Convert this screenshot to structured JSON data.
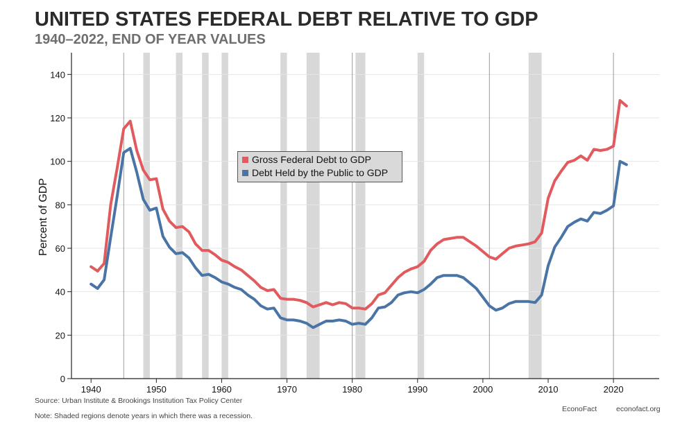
{
  "header": {
    "title": "UNITED STATES FEDERAL DEBT RELATIVE TO GDP",
    "subtitle": "1940–2022, END OF YEAR VALUES"
  },
  "footer": {
    "source": "Source: Urban Institute & Brookings Institution Tax Policy Center",
    "note": "Note: Shaded regions denote years in which there was a recession.",
    "brand": "EconoFact",
    "site": "econofact.org"
  },
  "colors": {
    "gross": "#e05a5e",
    "public": "#4a74a6",
    "recession": "#d8d8d8",
    "decade_line": "#9a9a9a",
    "grid": "#e6e6e6"
  },
  "chart_data": {
    "type": "line",
    "title": "UNITED STATES FEDERAL DEBT RELATIVE TO GDP",
    "subtitle": "1940–2022, END OF YEAR VALUES",
    "xlabel": "",
    "ylabel": "Percent of GDP",
    "xlim": [
      1937,
      2027
    ],
    "ylim": [
      0,
      150
    ],
    "xticks": [
      1940,
      1950,
      1960,
      1970,
      1980,
      1990,
      2000,
      2010,
      2020
    ],
    "yticks": [
      0,
      20,
      40,
      60,
      80,
      100,
      120,
      140
    ],
    "grid": true,
    "legend_position": "center-left",
    "decade_lines": [
      1945,
      1980,
      2001,
      2020
    ],
    "recessions": [
      [
        1948,
        1949
      ],
      [
        1953,
        1954
      ],
      [
        1957,
        1958
      ],
      [
        1960,
        1961
      ],
      [
        1969,
        1970
      ],
      [
        1973,
        1975
      ],
      [
        1980.5,
        1982
      ],
      [
        1990,
        1991
      ],
      [
        2007,
        2009
      ]
    ],
    "x": [
      1940,
      1941,
      1942,
      1943,
      1944,
      1945,
      1946,
      1947,
      1948,
      1949,
      1950,
      1951,
      1952,
      1953,
      1954,
      1955,
      1956,
      1957,
      1958,
      1959,
      1960,
      1961,
      1962,
      1963,
      1964,
      1965,
      1966,
      1967,
      1968,
      1969,
      1970,
      1971,
      1972,
      1973,
      1974,
      1975,
      1976,
      1977,
      1978,
      1979,
      1980,
      1981,
      1982,
      1983,
      1984,
      1985,
      1986,
      1987,
      1988,
      1989,
      1990,
      1991,
      1992,
      1993,
      1994,
      1995,
      1996,
      1997,
      1998,
      1999,
      2000,
      2001,
      2002,
      2003,
      2004,
      2005,
      2006,
      2007,
      2008,
      2009,
      2010,
      2011,
      2012,
      2013,
      2014,
      2015,
      2016,
      2017,
      2018,
      2019,
      2020,
      2021,
      2022
    ],
    "series": [
      {
        "name": "Gross Federal Debt to GDP",
        "values": [
          51.5,
          49.5,
          53,
          80,
          97,
          115,
          118.5,
          105,
          96,
          91.5,
          92,
          78,
          72.5,
          69.5,
          70,
          67.5,
          62,
          59,
          59,
          57,
          54.5,
          53.5,
          51.5,
          50,
          47.5,
          45,
          42,
          40.5,
          41,
          37,
          36.5,
          36.5,
          36,
          35,
          33,
          34,
          35,
          34,
          35,
          34.5,
          32.5,
          32.5,
          32,
          34.5,
          38.5,
          39.5,
          43,
          46.5,
          49,
          50.5,
          51.5,
          54,
          59,
          62,
          64,
          64.5,
          65,
          65,
          63,
          61,
          58.5,
          56,
          55,
          57.5,
          60,
          61,
          61.5,
          62,
          63,
          67,
          83,
          91,
          95.5,
          99.5,
          100.5,
          102.5,
          100.5,
          105.5,
          105,
          105.5,
          107,
          128,
          125.5
        ]
      },
      {
        "name": "Debt Held by the Public to GDP",
        "values": [
          43.5,
          41.5,
          45.5,
          65,
          84,
          104,
          106,
          95,
          82.5,
          77.5,
          78.5,
          65.5,
          60.5,
          57.5,
          58,
          55.5,
          51,
          47.5,
          48,
          46.5,
          44.5,
          43.5,
          42,
          41,
          38.5,
          36.5,
          33.5,
          32,
          32.5,
          28,
          27,
          27,
          26.5,
          25.5,
          23.5,
          25,
          26.5,
          26.5,
          27,
          26.5,
          25,
          25.5,
          25,
          28,
          32.5,
          33,
          35,
          38.5,
          39.5,
          40,
          39.5,
          41,
          43.5,
          46.5,
          47.5,
          47.5,
          47.5,
          46.5,
          44,
          41.5,
          37.5,
          33.5,
          31.5,
          32.5,
          34.5,
          35.5,
          35.5,
          35.5,
          35,
          38.5,
          52,
          60.5,
          65,
          70,
          72,
          73.5,
          72.5,
          76.5,
          76,
          77.5,
          79.5,
          100,
          98.5
        ]
      }
    ]
  }
}
